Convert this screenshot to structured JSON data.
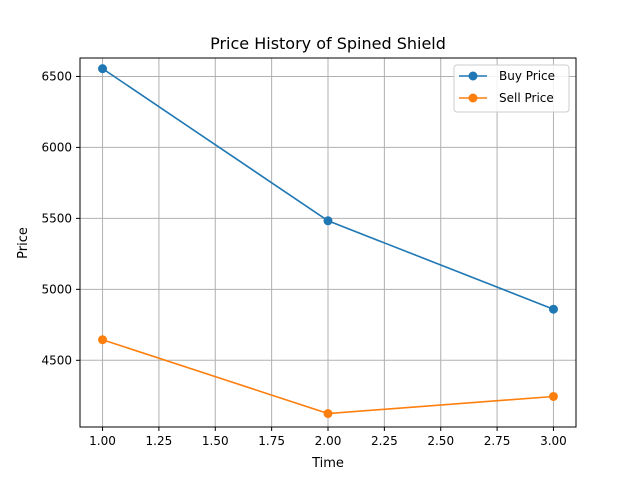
{
  "chart_data": {
    "type": "line",
    "title": "Price History of Spined Shield",
    "xlabel": "Time",
    "ylabel": "Price",
    "xlim": [
      0.9,
      3.1
    ],
    "ylim": [
      4030,
      6630
    ],
    "x_ticks": [
      1.0,
      1.25,
      1.5,
      1.75,
      2.0,
      2.25,
      2.5,
      2.75,
      3.0
    ],
    "x_tick_labels": [
      "1.00",
      "1.25",
      "1.50",
      "1.75",
      "2.00",
      "2.25",
      "2.50",
      "2.75",
      "3.00"
    ],
    "y_ticks": [
      4500,
      5000,
      5500,
      6000,
      6500
    ],
    "y_tick_labels": [
      "4500",
      "5000",
      "5500",
      "6000",
      "6500"
    ],
    "grid": true,
    "legend_position": "top-right",
    "x": [
      1,
      2,
      3
    ],
    "series": [
      {
        "name": "Buy Price",
        "color": "#1f77b4",
        "values": [
          6555,
          5483,
          4860
        ]
      },
      {
        "name": "Sell Price",
        "color": "#ff7f0e",
        "values": [
          4645,
          4125,
          4245
        ]
      }
    ]
  }
}
